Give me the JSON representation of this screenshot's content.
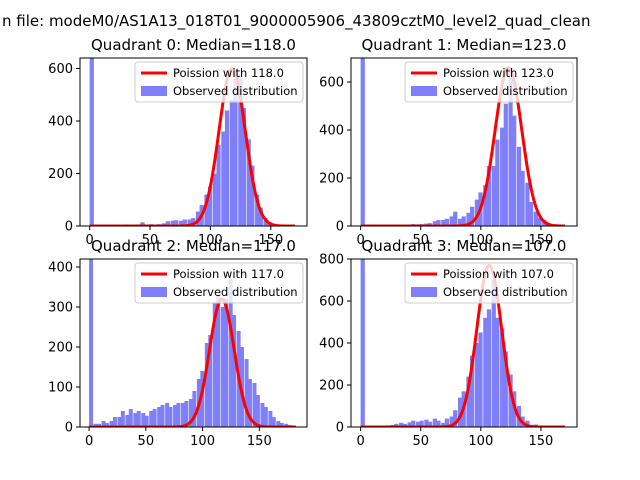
{
  "suptitle": "n file: modeM0/AS1A13_018T01_9000005906_43809cztM0_level2_quad_clean",
  "colors": {
    "bar": "#7f7ff9",
    "curve": "#ff0000",
    "frame": "#000000"
  },
  "chart_data": [
    {
      "type": "bar",
      "title": "Quadrant 0: Median=118.0",
      "xlim": [
        -8,
        180
      ],
      "ylim": [
        0,
        640
      ],
      "xticks": [
        0,
        50,
        100,
        150
      ],
      "yticks": [
        0,
        200,
        400,
        600
      ],
      "xtick_labels": [
        "0",
        "50",
        "100",
        "150"
      ],
      "ytick_labels": [
        "0",
        "200",
        "400",
        "600"
      ],
      "bin_width": 3.5,
      "x": [
        0,
        4,
        7,
        11,
        14,
        18,
        21,
        25,
        28,
        32,
        35,
        39,
        42,
        46,
        49,
        53,
        56,
        60,
        63,
        67,
        70,
        74,
        77,
        81,
        84,
        88,
        91,
        95,
        98,
        102,
        105,
        109,
        112,
        116,
        119,
        123,
        126,
        130,
        133,
        137,
        140,
        144,
        147,
        151,
        154,
        158,
        161,
        165
      ],
      "values": [
        640,
        2,
        2,
        3,
        3,
        3,
        4,
        4,
        6,
        4,
        5,
        6,
        14,
        5,
        7,
        4,
        7,
        10,
        18,
        20,
        22,
        20,
        25,
        25,
        30,
        55,
        80,
        120,
        150,
        200,
        310,
        360,
        440,
        480,
        560,
        580,
        450,
        330,
        230,
        120,
        70,
        30,
        15,
        8,
        5,
        3,
        2,
        2
      ],
      "curve_label": "Poission with 118.0",
      "curve_mean": 118,
      "curve_peak": 600,
      "legend": [
        "Poission with 118.0",
        "Observed distribution"
      ],
      "legend_position": "upper-right"
    },
    {
      "type": "bar",
      "title": "Quadrant 1: Median=123.0",
      "xlim": [
        -8,
        180
      ],
      "ylim": [
        0,
        700
      ],
      "xticks": [
        0,
        50,
        100,
        150
      ],
      "yticks": [
        0,
        200,
        400,
        600
      ],
      "xtick_labels": [
        "0",
        "50",
        "100",
        "150"
      ],
      "ytick_labels": [
        "0",
        "200",
        "400",
        "600"
      ],
      "bin_width": 3.5,
      "x": [
        0,
        4,
        7,
        11,
        14,
        18,
        21,
        25,
        28,
        32,
        35,
        39,
        42,
        46,
        49,
        53,
        56,
        60,
        63,
        67,
        70,
        74,
        77,
        81,
        84,
        88,
        91,
        95,
        98,
        102,
        105,
        109,
        112,
        116,
        119,
        123,
        126,
        130,
        133,
        137,
        140,
        144,
        147,
        151,
        154,
        158,
        161,
        165
      ],
      "values": [
        700,
        2,
        2,
        3,
        2,
        3,
        4,
        4,
        3,
        4,
        5,
        6,
        8,
        7,
        8,
        10,
        12,
        20,
        25,
        25,
        30,
        40,
        60,
        30,
        40,
        55,
        80,
        110,
        140,
        170,
        250,
        250,
        360,
        410,
        510,
        660,
        460,
        330,
        230,
        180,
        100,
        60,
        35,
        25,
        8,
        4,
        3,
        2
      ],
      "curve_label": "Poission with 123.0",
      "curve_mean": 123,
      "curve_peak": 660,
      "legend": [
        "Poission with 123.0",
        "Observed distribution"
      ],
      "legend_position": "upper-right"
    },
    {
      "type": "bar",
      "title": "Quadrant 2: Median=117.0",
      "xlim": [
        -8,
        192
      ],
      "ylim": [
        0,
        420
      ],
      "xticks": [
        0,
        50,
        100,
        150
      ],
      "yticks": [
        0,
        100,
        200,
        300,
        400
      ],
      "xtick_labels": [
        "0",
        "50",
        "100",
        "150"
      ],
      "ytick_labels": [
        "0",
        "100",
        "200",
        "300",
        "400"
      ],
      "bin_width": 3.5,
      "x": [
        0,
        4,
        7,
        11,
        14,
        18,
        21,
        25,
        28,
        32,
        35,
        39,
        42,
        46,
        49,
        53,
        56,
        60,
        63,
        67,
        70,
        74,
        77,
        81,
        84,
        88,
        91,
        95,
        98,
        102,
        105,
        109,
        112,
        116,
        119,
        123,
        126,
        130,
        133,
        137,
        140,
        144,
        147,
        151,
        154,
        158,
        161,
        165,
        168,
        172,
        175,
        179
      ],
      "values": [
        420,
        8,
        8,
        15,
        10,
        15,
        25,
        25,
        40,
        30,
        45,
        35,
        40,
        35,
        28,
        40,
        45,
        50,
        55,
        60,
        50,
        55,
        60,
        60,
        65,
        70,
        90,
        120,
        140,
        210,
        230,
        310,
        330,
        300,
        320,
        370,
        280,
        240,
        200,
        170,
        120,
        110,
        80,
        60,
        50,
        40,
        25,
        15,
        10,
        8,
        5,
        3
      ],
      "curve_label": "Poission with 117.0",
      "curve_mean": 117,
      "curve_peak": 320,
      "legend": [
        "Poission with 117.0",
        "Observed distribution"
      ],
      "legend_position": "upper-right"
    },
    {
      "type": "bar",
      "title": "Quadrant 3: Median=107.0",
      "xlim": [
        -8,
        180
      ],
      "ylim": [
        0,
        800
      ],
      "xticks": [
        0,
        50,
        100,
        150
      ],
      "yticks": [
        0,
        200,
        400,
        600,
        800
      ],
      "xtick_labels": [
        "0",
        "50",
        "100",
        "150"
      ],
      "ytick_labels": [
        "0",
        "200",
        "400",
        "600",
        "800"
      ],
      "bin_width": 3.5,
      "x": [
        0,
        4,
        7,
        11,
        14,
        18,
        21,
        25,
        28,
        32,
        35,
        39,
        42,
        46,
        49,
        53,
        56,
        60,
        63,
        67,
        70,
        74,
        77,
        81,
        84,
        88,
        91,
        95,
        98,
        102,
        105,
        109,
        112,
        116,
        119,
        123,
        126,
        130,
        133,
        137,
        140,
        144,
        147,
        151,
        154,
        158,
        161,
        165
      ],
      "values": [
        800,
        3,
        2,
        4,
        3,
        5,
        8,
        10,
        15,
        20,
        15,
        22,
        30,
        25,
        30,
        35,
        25,
        40,
        30,
        20,
        40,
        50,
        80,
        140,
        170,
        240,
        340,
        400,
        450,
        520,
        560,
        700,
        520,
        470,
        360,
        250,
        170,
        100,
        50,
        30,
        10,
        12,
        4,
        6,
        3,
        2,
        2,
        1
      ],
      "curve_label": "Poission with 107.0",
      "curve_mean": 107,
      "curve_peak": 770,
      "legend": [
        "Poission with 107.0",
        "Observed distribution"
      ],
      "legend_position": "upper-right"
    }
  ]
}
